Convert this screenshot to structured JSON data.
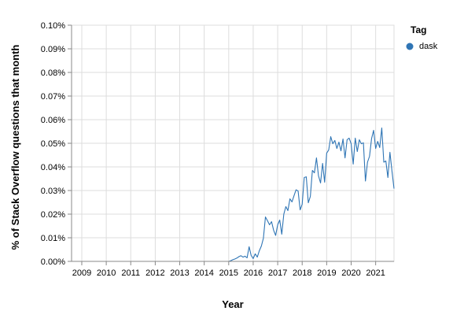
{
  "chart_data": {
    "type": "line",
    "xlabel": "Year",
    "ylabel": "% of Stack Overflow questions that month",
    "x_tick_labels": [
      "2009",
      "2010",
      "2011",
      "2012",
      "2013",
      "2014",
      "2015",
      "2016",
      "2017",
      "2018",
      "2019",
      "2020",
      "2021"
    ],
    "y_tick_labels": [
      "0.00%",
      "0.01%",
      "0.02%",
      "0.03%",
      "0.04%",
      "0.05%",
      "0.06%",
      "0.07%",
      "0.08%",
      "0.09%",
      "0.10%"
    ],
    "xlim": [
      "2008-08",
      "2021-10"
    ],
    "ylim": [
      0,
      0.1
    ],
    "grid": true,
    "legend": {
      "title": "Tag",
      "position": "top-right",
      "entries": [
        {
          "label": "dask",
          "color": "#2f75b5"
        }
      ]
    },
    "series": [
      {
        "name": "dask",
        "color": "#2f75b5",
        "points": [
          [
            "2008-08",
            0
          ],
          [
            "2015-01",
            0
          ],
          [
            "2015-02",
            0.0003
          ],
          [
            "2015-03",
            0.0007
          ],
          [
            "2015-04",
            0.001
          ],
          [
            "2015-05",
            0.0014
          ],
          [
            "2015-06",
            0.002
          ],
          [
            "2015-07",
            0.0024
          ],
          [
            "2015-08",
            0.0018
          ],
          [
            "2015-09",
            0.0022
          ],
          [
            "2015-10",
            0.0015
          ],
          [
            "2015-11",
            0.0062
          ],
          [
            "2015-12",
            0.0025
          ],
          [
            "2016-01",
            0.0012
          ],
          [
            "2016-02",
            0.0032
          ],
          [
            "2016-03",
            0.0018
          ],
          [
            "2016-04",
            0.0045
          ],
          [
            "2016-05",
            0.0065
          ],
          [
            "2016-06",
            0.0098
          ],
          [
            "2016-07",
            0.0188
          ],
          [
            "2016-08",
            0.0172
          ],
          [
            "2016-09",
            0.0155
          ],
          [
            "2016-10",
            0.0168
          ],
          [
            "2016-11",
            0.0132
          ],
          [
            "2016-12",
            0.011
          ],
          [
            "2017-01",
            0.0155
          ],
          [
            "2017-02",
            0.0175
          ],
          [
            "2017-03",
            0.0115
          ],
          [
            "2017-04",
            0.02
          ],
          [
            "2017-05",
            0.0232
          ],
          [
            "2017-06",
            0.0215
          ],
          [
            "2017-07",
            0.0265
          ],
          [
            "2017-08",
            0.0252
          ],
          [
            "2017-09",
            0.0278
          ],
          [
            "2017-10",
            0.0303
          ],
          [
            "2017-11",
            0.0298
          ],
          [
            "2017-12",
            0.0218
          ],
          [
            "2018-01",
            0.0242
          ],
          [
            "2018-02",
            0.0355
          ],
          [
            "2018-03",
            0.0358
          ],
          [
            "2018-04",
            0.0248
          ],
          [
            "2018-05",
            0.0275
          ],
          [
            "2018-06",
            0.0385
          ],
          [
            "2018-07",
            0.0375
          ],
          [
            "2018-08",
            0.0438
          ],
          [
            "2018-09",
            0.0362
          ],
          [
            "2018-10",
            0.0332
          ],
          [
            "2018-11",
            0.0415
          ],
          [
            "2018-12",
            0.0335
          ],
          [
            "2019-01",
            0.0458
          ],
          [
            "2019-02",
            0.0472
          ],
          [
            "2019-03",
            0.0528
          ],
          [
            "2019-04",
            0.0498
          ],
          [
            "2019-05",
            0.0512
          ],
          [
            "2019-06",
            0.0478
          ],
          [
            "2019-07",
            0.0505
          ],
          [
            "2019-08",
            0.0468
          ],
          [
            "2019-09",
            0.0518
          ],
          [
            "2019-10",
            0.0438
          ],
          [
            "2019-11",
            0.0515
          ],
          [
            "2019-12",
            0.0522
          ],
          [
            "2020-01",
            0.0498
          ],
          [
            "2020-02",
            0.0412
          ],
          [
            "2020-03",
            0.0522
          ],
          [
            "2020-04",
            0.0465
          ],
          [
            "2020-05",
            0.0515
          ],
          [
            "2020-06",
            0.0498
          ],
          [
            "2020-07",
            0.0502
          ],
          [
            "2020-08",
            0.034
          ],
          [
            "2020-09",
            0.042
          ],
          [
            "2020-10",
            0.0445
          ],
          [
            "2020-11",
            0.052
          ],
          [
            "2020-12",
            0.0555
          ],
          [
            "2021-01",
            0.0478
          ],
          [
            "2021-02",
            0.0508
          ],
          [
            "2021-03",
            0.0482
          ],
          [
            "2021-04",
            0.0565
          ],
          [
            "2021-05",
            0.042
          ],
          [
            "2021-06",
            0.0425
          ],
          [
            "2021-07",
            0.0355
          ],
          [
            "2021-08",
            0.0462
          ],
          [
            "2021-09",
            0.0382
          ],
          [
            "2021-10",
            0.0308
          ]
        ]
      }
    ]
  }
}
